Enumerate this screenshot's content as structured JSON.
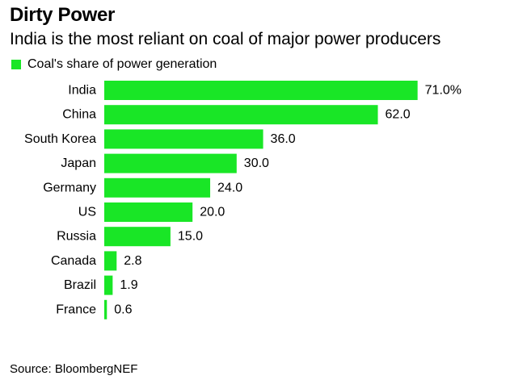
{
  "colors": {
    "bar": "#19e626",
    "text": "#000000",
    "background": "#ffffff"
  },
  "chart_data": {
    "type": "bar",
    "orientation": "horizontal",
    "title": "Dirty Power",
    "subtitle": "India is the most reliant on coal of major power producers",
    "legend": {
      "entries": [
        "Coal's share of power generation"
      ],
      "placement": "top-left"
    },
    "categories": [
      "India",
      "China",
      "South Korea",
      "Japan",
      "Germany",
      "US",
      "Russia",
      "Canada",
      "Brazil",
      "France"
    ],
    "series": [
      {
        "name": "Coal's share of power generation",
        "values": [
          71.0,
          62.0,
          36.0,
          30.0,
          24.0,
          20.0,
          15.0,
          2.8,
          1.9,
          0.6
        ]
      }
    ],
    "data_labels": [
      "71.0%",
      "62.0",
      "36.0",
      "30.0",
      "24.0",
      "20.0",
      "15.0",
      "2.8",
      "1.9",
      "0.6"
    ],
    "xlim": [
      0,
      80
    ],
    "grid": false,
    "source": "Source: BloombergNEF"
  }
}
